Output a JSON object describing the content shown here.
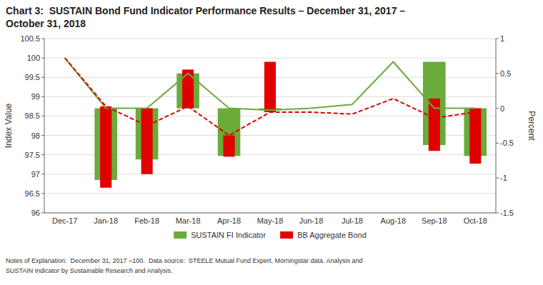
{
  "chart_data": {
    "type": "bar",
    "title": "Chart 3:  SUSTAIN Bond Fund Indicator Performance Results – December 31, 2017 –\nOctober 31, 2018",
    "footnote": "Notes of Explanation:  December 31, 2017 =100.  Data source:  STEELE Mutual Fund Expert, Morningstar data. Analysis and\nSUSTAIN Indicator by Sustainable Research and Analysis.",
    "ylabel": "Index Value",
    "y2label": "Percent",
    "categories": [
      "Dec-17",
      "Jan-18",
      "Feb-18",
      "Mar-18",
      "Apr-18",
      "May-18",
      "Jun-18",
      "Jul-18",
      "Aug-18",
      "Sep-18",
      "Oct-18"
    ],
    "series": [
      {
        "name": "SUSTAIN FI Indicator",
        "type": "bar",
        "color": "#6aab3a",
        "bottom": [
          null,
          96.85,
          97.38,
          98.7,
          97.47,
          98.65,
          98.65,
          98.7,
          98.8,
          97.75,
          97.47
        ],
        "values": [
          null,
          98.7,
          98.7,
          99.6,
          98.7,
          98.7,
          98.65,
          98.7,
          98.8,
          99.9,
          98.7
        ]
      },
      {
        "name": "BB Aggregate Bond",
        "type": "bar",
        "color": "#e00000",
        "bottom": [
          null,
          96.65,
          97.0,
          98.7,
          97.45,
          98.6,
          98.6,
          98.55,
          98.95,
          97.6,
          97.27
        ],
        "values": [
          null,
          98.75,
          98.7,
          99.7,
          98.0,
          99.9,
          98.6,
          98.55,
          98.95,
          98.95,
          98.7
        ]
      },
      {
        "type": "line",
        "color": "#6aab3a",
        "line_style": "solid",
        "values": [
          100.0,
          98.7,
          98.7,
          99.6,
          98.7,
          98.65,
          98.7,
          98.8,
          99.9,
          98.7,
          98.7
        ]
      },
      {
        "type": "line",
        "color": "#e00000",
        "line_style": "dashed",
        "values": [
          100.0,
          98.75,
          98.25,
          98.75,
          98.0,
          98.6,
          98.6,
          98.55,
          98.95,
          98.45,
          98.6
        ]
      }
    ],
    "ylim": [
      96.0,
      100.5
    ],
    "yticks": [
      96,
      96.5,
      97,
      97.5,
      98,
      98.5,
      99,
      99.5,
      100,
      100.5
    ],
    "y2lim": [
      -1.5,
      1.0
    ],
    "y2ticks": [
      -1.5,
      -1,
      -0.5,
      0,
      0.5,
      1
    ],
    "grid": true,
    "legend": "bottom"
  }
}
